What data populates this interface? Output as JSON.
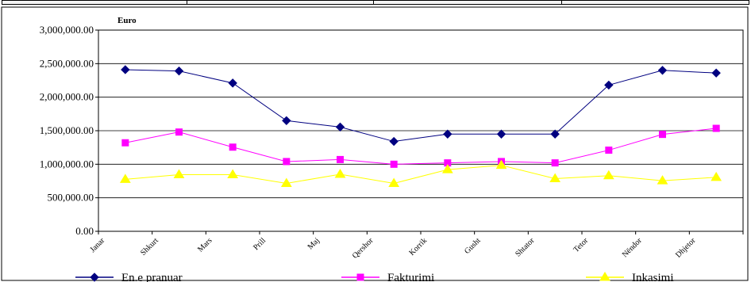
{
  "chart_data": {
    "type": "line",
    "unit_label": "Euro",
    "categories": [
      "Janar",
      "Shkurt",
      "Mars",
      "Prill",
      "Maj",
      "Qershor",
      "Korrik",
      "Gusht",
      "Shtator",
      "Tetor",
      "Nëndor",
      "Dhjetor"
    ],
    "ylim": [
      0,
      3000000
    ],
    "yticks": [
      0,
      500000,
      1000000,
      1500000,
      2000000,
      2500000,
      3000000
    ],
    "ytick_labels": [
      "0.00",
      "500,000.00",
      "1,000,000.00",
      "1,500,000.00",
      "2,000,000.00",
      "2,500,000.00",
      "3,000,000.00"
    ],
    "grid": true,
    "legend_position": "bottom",
    "series": [
      {
        "name": "En.e pranuar",
        "color": "#000080",
        "marker": "diamond",
        "values": [
          2410000,
          2390000,
          2210000,
          1650000,
          1555000,
          1340000,
          1450000,
          1450000,
          1450000,
          2180000,
          2400000,
          2360000
        ]
      },
      {
        "name": "Fakturimi",
        "color": "#ff00ff",
        "marker": "square",
        "values": [
          1320000,
          1480000,
          1255000,
          1040000,
          1070000,
          1000000,
          1020000,
          1040000,
          1020000,
          1210000,
          1445000,
          1535000
        ]
      },
      {
        "name": "Inkasimi",
        "color": "#ffff00",
        "marker": "triangle",
        "values": [
          775000,
          845000,
          845000,
          715000,
          850000,
          715000,
          920000,
          985000,
          785000,
          830000,
          755000,
          805000
        ]
      }
    ]
  }
}
